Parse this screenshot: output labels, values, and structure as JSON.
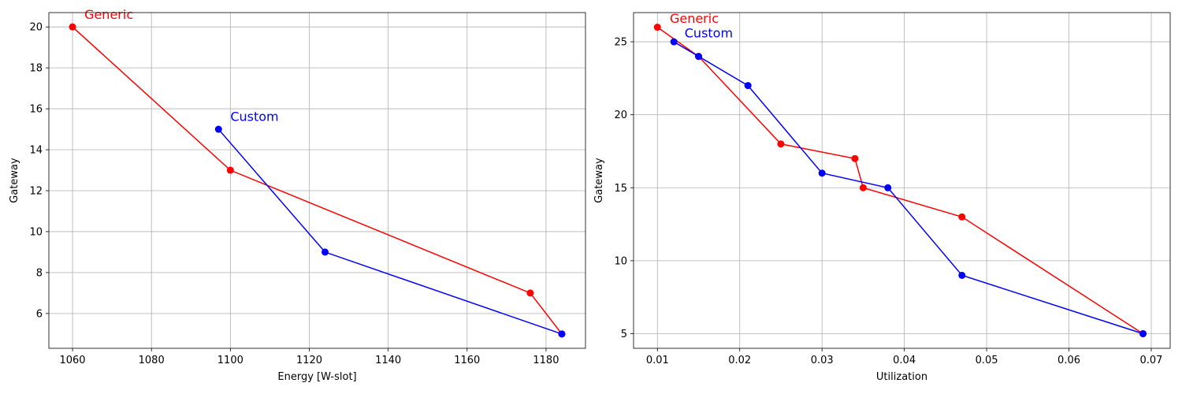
{
  "chart_data": [
    {
      "type": "line",
      "xlabel": "Energy [W-slot]",
      "ylabel": "Gateway",
      "xlim": [
        1054,
        1190
      ],
      "ylim": [
        4.3,
        20.7
      ],
      "xticks": [
        1060,
        1080,
        1100,
        1120,
        1140,
        1160,
        1180
      ],
      "yticks": [
        6,
        8,
        10,
        12,
        14,
        16,
        18,
        20
      ],
      "grid": true,
      "series": [
        {
          "name": "Generic",
          "color": "#ff0000",
          "x": [
            1060,
            1100,
            1176,
            1184
          ],
          "y": [
            20,
            13,
            7,
            5
          ]
        },
        {
          "name": "Custom",
          "color": "#0000ff",
          "x": [
            1097,
            1124,
            1184
          ],
          "y": [
            15,
            9,
            5
          ]
        }
      ],
      "annotations": [
        {
          "text": "Generic",
          "color": "#ff0000",
          "x": 1063,
          "y": 20.4
        },
        {
          "text": "Custom",
          "color": "#0000ff",
          "x": 1100,
          "y": 15.4
        }
      ]
    },
    {
      "type": "line",
      "xlabel": "Utilization",
      "ylabel": "Gateway",
      "xlim": [
        0.0071,
        0.0723
      ],
      "ylim": [
        4.0,
        27.0
      ],
      "xticks": [
        0.01,
        0.02,
        0.03,
        0.04,
        0.05,
        0.06,
        0.07
      ],
      "yticks": [
        5,
        10,
        15,
        20,
        25
      ],
      "grid": true,
      "series": [
        {
          "name": "Generic",
          "color": "#ff0000",
          "x": [
            0.01,
            0.015,
            0.025,
            0.034,
            0.035,
            0.047,
            0.069
          ],
          "y": [
            26,
            24,
            18,
            17,
            15,
            13,
            5
          ]
        },
        {
          "name": "Custom",
          "color": "#0000ff",
          "x": [
            0.012,
            0.015,
            0.021,
            0.03,
            0.038,
            0.047,
            0.069
          ],
          "y": [
            25,
            24,
            22,
            16,
            15,
            9,
            5
          ]
        }
      ],
      "annotations": [
        {
          "text": "Generic",
          "color": "#ff0000",
          "x": 0.0115,
          "y": 26.3
        },
        {
          "text": "Custom",
          "color": "#0000ff",
          "x": 0.0133,
          "y": 25.3
        }
      ]
    }
  ]
}
